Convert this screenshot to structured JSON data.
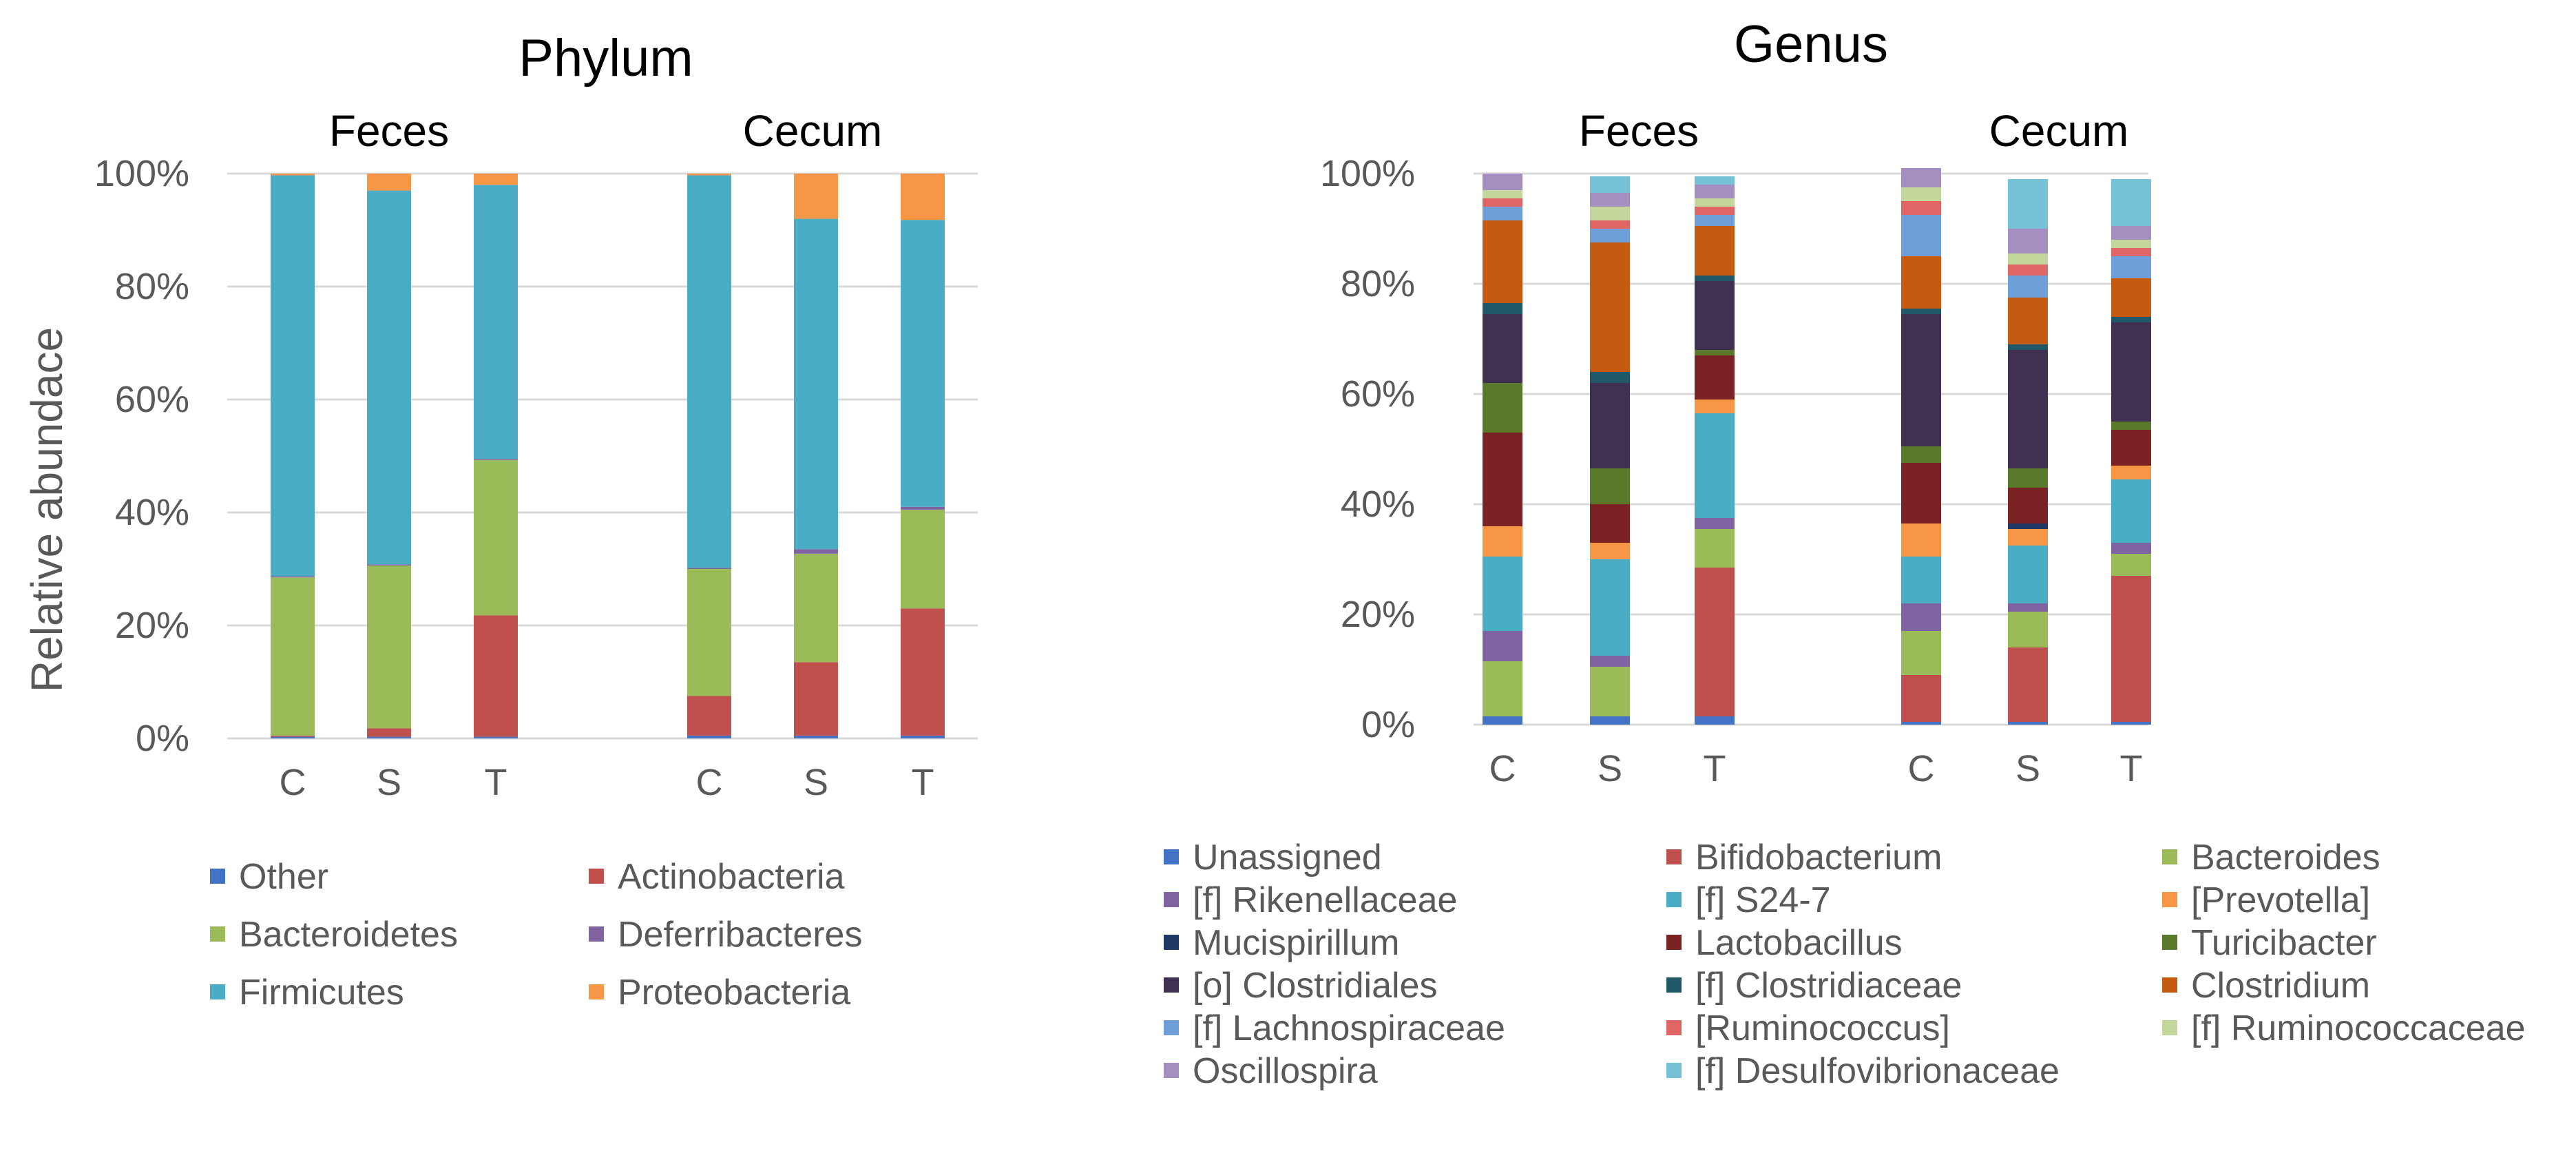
{
  "chart_data": [
    {
      "type": "bar",
      "stacked": true,
      "title": "Phylum",
      "groups": [
        {
          "name": "Feces",
          "categories": [
            "C",
            "S",
            "T"
          ]
        },
        {
          "name": "Cecum",
          "categories": [
            "C",
            "S",
            "T"
          ]
        }
      ],
      "ylabel": "Relative abundace",
      "ylim": [
        0,
        100
      ],
      "yticks": [
        "0%",
        "20%",
        "40%",
        "60%",
        "80%",
        "100%"
      ],
      "grid": true,
      "legend_position": "bottom",
      "series": [
        {
          "name": "Other",
          "color": "#4472c4",
          "values": [
            0.3,
            0.3,
            0.3,
            0.5,
            0.5,
            0.5
          ]
        },
        {
          "name": "Actinobacteria",
          "color": "#c0504d",
          "values": [
            0.2,
            1.5,
            21.5,
            7,
            13,
            22.5
          ]
        },
        {
          "name": "Bacteroidetes",
          "color": "#9bbb59",
          "values": [
            28,
            28.8,
            27.5,
            22.5,
            19.2,
            17.5
          ]
        },
        {
          "name": "Deferribacteres",
          "color": "#8064a2",
          "values": [
            0.2,
            0.2,
            0.2,
            0.2,
            0.8,
            0.5
          ]
        },
        {
          "name": "Firmicutes",
          "color": "#4bacc6",
          "values": [
            71,
            66.2,
            48.5,
            69.5,
            58.5,
            50.8
          ]
        },
        {
          "name": "Proteobacteria",
          "color": "#f79646",
          "values": [
            0.3,
            3,
            2,
            0.3,
            8,
            8.2
          ]
        }
      ]
    },
    {
      "type": "bar",
      "stacked": true,
      "title": "Genus",
      "groups": [
        {
          "name": "Feces",
          "categories": [
            "C",
            "S",
            "T"
          ]
        },
        {
          "name": "Cecum",
          "categories": [
            "C",
            "S",
            "T"
          ]
        }
      ],
      "ylim": [
        0,
        100
      ],
      "yticks": [
        "0%",
        "20%",
        "40%",
        "60%",
        "80%",
        "100%"
      ],
      "grid": true,
      "legend_position": "bottom",
      "series": [
        {
          "name": "Unassigned",
          "color": "#4472c4",
          "values": [
            1.5,
            1.5,
            1.5,
            0.5,
            0.5,
            0.5
          ]
        },
        {
          "name": "Bifidobacterium",
          "color": "#c0504d",
          "values": [
            0,
            0,
            27,
            8.5,
            13.5,
            26.5
          ]
        },
        {
          "name": "Bacteroides",
          "color": "#9bbb59",
          "values": [
            10,
            9,
            7,
            8,
            6.5,
            4
          ]
        },
        {
          "name": "[f] Rikenellaceae",
          "color": "#8064a2",
          "values": [
            5.5,
            2,
            2,
            5,
            1.5,
            2
          ]
        },
        {
          "name": "[f] S24-7",
          "color": "#4bacc6",
          "values": [
            13.5,
            17.5,
            19,
            8.5,
            10.5,
            11.5
          ]
        },
        {
          "name": "[Prevotella]",
          "color": "#f79646",
          "values": [
            5.5,
            3,
            2.5,
            6,
            3,
            2.5
          ]
        },
        {
          "name": "Mucispirillum",
          "color": "#1f3864",
          "values": [
            0,
            0,
            0,
            0,
            1,
            0
          ]
        },
        {
          "name": "Lactobacillus",
          "color": "#7b2324",
          "values": [
            17,
            7,
            8,
            11,
            6.5,
            6.5
          ]
        },
        {
          "name": "Turicibacter",
          "color": "#5a7a2b",
          "values": [
            9,
            6.5,
            1,
            3,
            3.5,
            1.5
          ]
        },
        {
          "name": "[o] Clostridiales",
          "color": "#403152",
          "values": [
            12.5,
            15.5,
            12.5,
            24,
            21.5,
            18
          ]
        },
        {
          "name": "[f] Clostridiaceae",
          "color": "#215868",
          "values": [
            2,
            2,
            1,
            1,
            1,
            1
          ]
        },
        {
          "name": "Clostridium",
          "color": "#c55a11",
          "values": [
            15,
            23.5,
            9,
            9.5,
            8.5,
            7
          ]
        },
        {
          "name": "[f] Lachnospiraceae",
          "color": "#6f9fd8",
          "values": [
            2.5,
            2.5,
            2,
            7.5,
            4,
            4
          ]
        },
        {
          "name": "[Ruminococcus]",
          "color": "#e06666",
          "values": [
            1.5,
            1.5,
            1.5,
            2.5,
            2,
            1.5
          ]
        },
        {
          "name": "[f] Ruminococcaceae",
          "color": "#c3d69b",
          "values": [
            1.5,
            2.5,
            1.5,
            2.5,
            2,
            1.5
          ]
        },
        {
          "name": "Oscillospira",
          "color": "#a58fc1",
          "values": [
            3,
            2.5,
            2.5,
            3.5,
            4.5,
            2.5
          ]
        },
        {
          "name": "[f] Desulfovibrionaceae",
          "color": "#75c2d6",
          "values": [
            0,
            3,
            1.5,
            0,
            9,
            8.5
          ]
        }
      ]
    }
  ]
}
